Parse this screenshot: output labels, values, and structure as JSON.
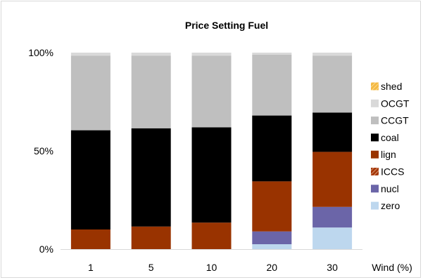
{
  "chart_data": {
    "type": "bar",
    "stacked": true,
    "title": "Price Setting Fuel",
    "xlabel": "Wind (%)",
    "ylabel": "",
    "ylim": [
      0,
      100
    ],
    "yticks": [
      "0%",
      "50%",
      "100%"
    ],
    "categories": [
      "1",
      "5",
      "10",
      "20",
      "30"
    ],
    "grid": false,
    "legend_position": "right",
    "series": [
      {
        "name": "zero",
        "color": "#bdd7ee",
        "pattern": "solid",
        "values": [
          0,
          0,
          0,
          2.5,
          11
        ]
      },
      {
        "name": "nucl",
        "color": "#6b65a8",
        "pattern": "solid",
        "values": [
          0,
          0,
          0,
          6.5,
          10.5
        ]
      },
      {
        "name": "ICCS",
        "color": "#a5380a",
        "pattern": "hatch",
        "values": [
          0,
          0,
          0,
          0,
          0
        ]
      },
      {
        "name": "lign",
        "color": "#993300",
        "pattern": "solid",
        "values": [
          10,
          11.5,
          13.5,
          25.5,
          28
        ]
      },
      {
        "name": "coal",
        "color": "#000000",
        "pattern": "solid",
        "values": [
          50.5,
          50,
          48.5,
          33.5,
          20
        ]
      },
      {
        "name": "CCGT",
        "color": "#bfbfbf",
        "pattern": "solid",
        "values": [
          38,
          37,
          36.5,
          31,
          29
        ]
      },
      {
        "name": "OCGT",
        "color": "#d9d9d9",
        "pattern": "solid",
        "values": [
          1.5,
          1.5,
          1.5,
          1,
          1.5
        ]
      },
      {
        "name": "shed",
        "color": "#f4b942",
        "pattern": "hatch",
        "values": [
          0,
          0,
          0,
          0,
          0
        ]
      }
    ],
    "legend_order": [
      "shed",
      "OCGT",
      "CCGT",
      "coal",
      "lign",
      "ICCS",
      "nucl",
      "zero"
    ]
  }
}
